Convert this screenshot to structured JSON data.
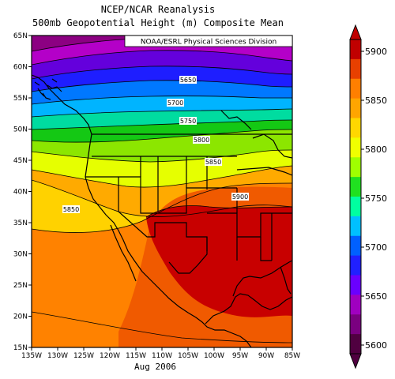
{
  "title": {
    "line1": "NCEP/NCAR Reanalysis",
    "line2": "500mb Geopotential Height (m) Composite Mean"
  },
  "credit": "NOAA/ESRL Physical Sciences Division",
  "date": "Aug 2006",
  "lat_labels": [
    "65N",
    "60N",
    "55N",
    "50N",
    "45N",
    "40N",
    "35N",
    "30N",
    "25N",
    "20N",
    "15N"
  ],
  "lon_labels": [
    "135W",
    "130W",
    "125W",
    "120W",
    "115W",
    "110W",
    "105W",
    "100W",
    "95W",
    "90W",
    "85W"
  ],
  "contour_labels": [
    "5650",
    "5700",
    "5750",
    "5800",
    "5850",
    "5900",
    "5850"
  ],
  "colorbar": {
    "levels": [
      "5900",
      "5850",
      "5800",
      "5750",
      "5700",
      "5650",
      "5600"
    ],
    "colors_top_to_bottom": [
      "#c00000",
      "#e84000",
      "#ff7f00",
      "#ffa500",
      "#ffd700",
      "#f0ff00",
      "#a0ff00",
      "#20e020",
      "#00ffa0",
      "#00c0ff",
      "#0060ff",
      "#2020ff",
      "#6a00ff",
      "#a000c0",
      "#7a0080",
      "#500040"
    ]
  },
  "colors": {
    "band_5600": "#5a0046",
    "band_5625": "#8c0082",
    "band_5650": "#b400c8",
    "band_5675": "#6400dc",
    "band_5700": "#1e1eff",
    "band_5725": "#0078ff",
    "band_5750": "#00b4ff",
    "band_5775": "#00dca0",
    "band_5800": "#14c814",
    "band_5825": "#8ce600",
    "band_5850": "#e6ff00",
    "band_5860": "#ffd200",
    "band_5870": "#ffaa00",
    "band_5880": "#ff8200",
    "band_5890": "#f05a00",
    "band_5900": "#c80000"
  }
}
